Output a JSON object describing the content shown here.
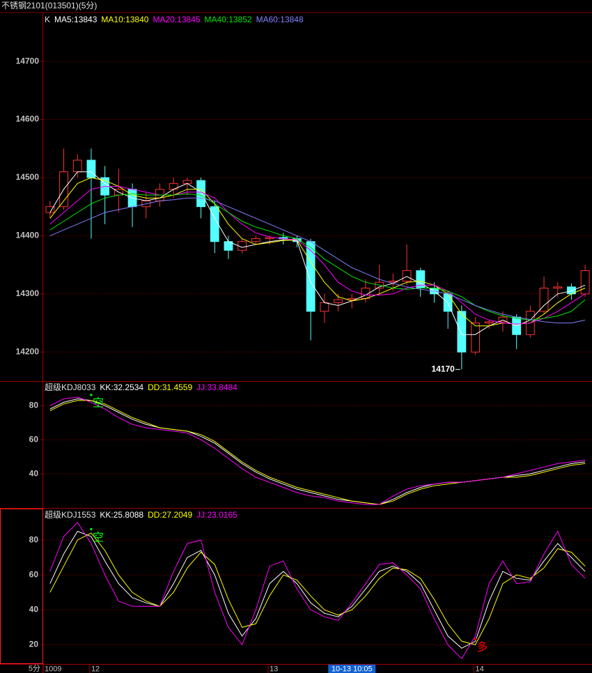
{
  "window_title": "不锈钢2101(013501)(5分)",
  "period_label": "5分",
  "chart_data": [
    {
      "type": "candlestick",
      "title": "K",
      "categories": [
        "1009",
        null,
        null,
        "12",
        null,
        null,
        null,
        null,
        null,
        null,
        null,
        null,
        null,
        null,
        null,
        null,
        "13",
        null,
        null,
        null,
        null,
        null,
        "10-13 10:05",
        null,
        null,
        null,
        null,
        null,
        null,
        null,
        null,
        "14",
        null,
        null,
        null,
        null,
        null,
        null,
        null,
        null
      ],
      "cursor_index": 22,
      "open": [
        14440,
        14450,
        14510,
        14530,
        14500,
        14470,
        14480,
        14450,
        14460,
        14480,
        14490,
        14495,
        14450,
        14390,
        14375,
        14390,
        14395,
        14397,
        14395,
        14390,
        14270,
        14285,
        14290,
        14292,
        14310,
        14320,
        14322,
        14340,
        14310,
        14300,
        14270,
        14200,
        14250,
        14252,
        14260,
        14230,
        14270,
        14310,
        14312,
        14300
      ],
      "high": [
        14460,
        14550,
        14540,
        14550,
        14520,
        14515,
        14490,
        14475,
        14490,
        14500,
        14500,
        14500,
        14460,
        14400,
        14395,
        14400,
        14400,
        14405,
        14400,
        14395,
        14300,
        14300,
        14300,
        14325,
        14350,
        14335,
        14385,
        14345,
        14320,
        14305,
        14280,
        14260,
        14255,
        14270,
        14265,
        14280,
        14330,
        14320,
        14318,
        14350
      ],
      "low": [
        14430,
        14445,
        14500,
        14395,
        14420,
        14440,
        14415,
        14430,
        14450,
        14465,
        14470,
        14430,
        14370,
        14360,
        14370,
        14385,
        14385,
        14385,
        14380,
        14220,
        14250,
        14270,
        14275,
        14285,
        14300,
        14305,
        14315,
        14295,
        14285,
        14240,
        14170,
        14195,
        14240,
        14235,
        14205,
        14225,
        14265,
        14295,
        14290,
        14295
      ],
      "close": [
        14450,
        14510,
        14530,
        14500,
        14470,
        14480,
        14450,
        14460,
        14480,
        14490,
        14495,
        14450,
        14390,
        14375,
        14390,
        14395,
        14397,
        14395,
        14390,
        14270,
        14285,
        14290,
        14292,
        14310,
        14320,
        14322,
        14340,
        14310,
        14300,
        14270,
        14200,
        14250,
        14252,
        14260,
        14230,
        14270,
        14310,
        14312,
        14300,
        14340
      ],
      "up_color": "#ff3232",
      "down_color": "#54ffff",
      "series": [
        {
          "name": "MA5:13843",
          "color": "#ffffff",
          "values": [
            14440,
            14480,
            14510,
            14510,
            14490,
            14475,
            14465,
            14460,
            14465,
            14480,
            14490,
            14475,
            14430,
            14390,
            14380,
            14385,
            14390,
            14393,
            14392,
            14320,
            14285,
            14280,
            14288,
            14298,
            14312,
            14318,
            14330,
            14318,
            14305,
            14285,
            14230,
            14230,
            14245,
            14255,
            14245,
            14255,
            14280,
            14300,
            14305,
            14315
          ]
        },
        {
          "name": "MA10:13840",
          "color": "#ffff00",
          "values": [
            14430,
            14460,
            14490,
            14500,
            14495,
            14485,
            14470,
            14465,
            14465,
            14470,
            14480,
            14480,
            14455,
            14420,
            14395,
            14385,
            14388,
            14392,
            14393,
            14355,
            14320,
            14295,
            14288,
            14292,
            14300,
            14310,
            14320,
            14322,
            14315,
            14300,
            14265,
            14245,
            14245,
            14250,
            14248,
            14250,
            14265,
            14285,
            14300,
            14310
          ]
        },
        {
          "name": "MA20:13845",
          "color": "#ff00ff",
          "values": [
            14420,
            14440,
            14460,
            14480,
            14485,
            14485,
            14480,
            14475,
            14470,
            14470,
            14475,
            14475,
            14465,
            14440,
            14420,
            14405,
            14398,
            14395,
            14393,
            14375,
            14350,
            14320,
            14305,
            14298,
            14298,
            14300,
            14310,
            14315,
            14315,
            14305,
            14285,
            14265,
            14255,
            14250,
            14248,
            14250,
            14258,
            14270,
            14285,
            14300
          ]
        },
        {
          "name": "MA40:13852",
          "color": "#00e600",
          "values": [
            14410,
            14425,
            14440,
            14455,
            14465,
            14470,
            14472,
            14470,
            14470,
            14470,
            14472,
            14470,
            14455,
            14440,
            14425,
            14415,
            14408,
            14400,
            14395,
            14380,
            14360,
            14345,
            14330,
            14320,
            14315,
            14310,
            14308,
            14310,
            14310,
            14305,
            14295,
            14280,
            14270,
            14262,
            14258,
            14255,
            14258,
            14262,
            14270,
            14290
          ]
        },
        {
          "name": "MA60:13848",
          "color": "#8080ff",
          "values": [
            14400,
            14410,
            14420,
            14430,
            14440,
            14445,
            14450,
            14455,
            14460,
            14462,
            14465,
            14465,
            14460,
            14450,
            14440,
            14430,
            14420,
            14410,
            14400,
            14390,
            14375,
            14360,
            14345,
            14335,
            14325,
            14318,
            14312,
            14308,
            14305,
            14300,
            14290,
            14280,
            14272,
            14265,
            14260,
            14256,
            14252,
            14250,
            14250,
            14255
          ]
        }
      ],
      "annotations": [
        {
          "text": "14170",
          "x": 30,
          "y": 14170
        }
      ],
      "ylim": [
        14150,
        14784
      ],
      "yticks": [
        14200,
        14300,
        14400,
        14500,
        14600,
        14700
      ],
      "grid": true
    },
    {
      "type": "line",
      "title": "超级KDJ8033",
      "series": [
        {
          "name": "KK:32.2534",
          "color": "#ffffff",
          "values": [
            78,
            82,
            84,
            83,
            80,
            76,
            72,
            69,
            67,
            66,
            65,
            62,
            58,
            52,
            46,
            41,
            37,
            34,
            31,
            29,
            27,
            25,
            24,
            23,
            22,
            25,
            29,
            32,
            34,
            35,
            35,
            36,
            37,
            38,
            39,
            40,
            42,
            44,
            46,
            47
          ]
        },
        {
          "name": "DD:31.4559",
          "color": "#ffff00",
          "values": [
            77,
            81,
            83,
            83,
            81,
            77,
            73,
            70,
            67,
            66,
            65,
            63,
            59,
            53,
            47,
            42,
            38,
            35,
            32,
            30,
            28,
            26,
            24,
            23,
            22,
            24,
            28,
            31,
            33,
            34,
            35,
            36,
            37,
            38,
            38,
            39,
            41,
            43,
            45,
            46
          ]
        },
        {
          "name": "JJ:33.8484",
          "color": "#ff00ff",
          "values": [
            80,
            84,
            85,
            82,
            78,
            73,
            69,
            67,
            66,
            65,
            64,
            60,
            55,
            49,
            43,
            38,
            35,
            32,
            29,
            27,
            26,
            24,
            23,
            22,
            22,
            27,
            31,
            33,
            34,
            35,
            35,
            36,
            37,
            38,
            40,
            42,
            44,
            46,
            47,
            48
          ]
        }
      ],
      "annotations": [
        {
          "text": "空",
          "x": 3,
          "y": 82,
          "color": "#00ff00"
        }
      ],
      "ylim": [
        20,
        94
      ],
      "yticks": [
        40,
        60,
        80
      ],
      "grid": true
    },
    {
      "type": "line",
      "title": "超级KDJ1553",
      "series": [
        {
          "name": "KK:25.8088",
          "color": "#ffffff",
          "values": [
            55,
            72,
            85,
            82,
            68,
            55,
            47,
            44,
            42,
            55,
            70,
            74,
            60,
            38,
            25,
            35,
            55,
            62,
            55,
            44,
            38,
            36,
            42,
            52,
            62,
            65,
            62,
            55,
            40,
            25,
            18,
            22,
            45,
            62,
            58,
            57,
            68,
            78,
            70,
            62
          ]
        },
        {
          "name": "DD:27.2049",
          "color": "#ffff00",
          "values": [
            50,
            65,
            80,
            84,
            74,
            60,
            50,
            45,
            42,
            50,
            64,
            73,
            66,
            46,
            30,
            32,
            48,
            60,
            57,
            48,
            40,
            37,
            40,
            48,
            58,
            64,
            63,
            58,
            46,
            32,
            22,
            20,
            35,
            55,
            60,
            58,
            64,
            75,
            73,
            65
          ]
        },
        {
          "name": "JJ:23.0165",
          "color": "#ff00ff",
          "values": [
            62,
            82,
            90,
            78,
            60,
            45,
            42,
            42,
            42,
            62,
            78,
            80,
            50,
            30,
            20,
            40,
            65,
            68,
            52,
            40,
            36,
            34,
            44,
            55,
            66,
            67,
            60,
            52,
            35,
            20,
            12,
            25,
            55,
            68,
            55,
            56,
            72,
            85,
            66,
            58
          ]
        }
      ],
      "annotations": [
        {
          "text": "空",
          "x": 3,
          "y": 82,
          "color": "#00ff00"
        },
        {
          "text": "多",
          "x": 31,
          "y": 19,
          "color": "#ff0000"
        }
      ],
      "ylim": [
        9,
        98
      ],
      "yticks": [
        20,
        40,
        60,
        80
      ],
      "grid": true
    }
  ]
}
